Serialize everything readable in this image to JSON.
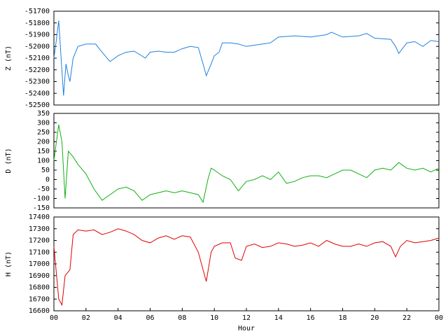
{
  "chart_data": [
    {
      "type": "line",
      "ylabel": "Z (nT)",
      "xlim": [
        0,
        24
      ],
      "ylim": [
        -52500,
        -51700
      ],
      "yticks": [
        -52500,
        -52400,
        -52300,
        -52200,
        -52100,
        -52000,
        -51900,
        -51800,
        -51700
      ],
      "series": [
        {
          "name": "Z",
          "color": "#2080e0",
          "x": [
            0,
            0.15,
            0.3,
            0.45,
            0.6,
            0.75,
            0.9,
            1.0,
            1.2,
            1.5,
            2,
            2.6,
            3,
            3.5,
            4,
            4.5,
            5,
            5.7,
            6,
            6.5,
            7,
            7.5,
            8,
            8.5,
            9,
            9.3,
            9.5,
            9.8,
            10,
            10.3,
            10.5,
            11,
            11.5,
            12,
            13,
            13.5,
            14,
            15,
            16,
            17,
            17.3,
            18,
            19,
            19.5,
            20,
            21,
            21.3,
            21.5,
            22,
            22.5,
            23,
            23.5,
            24
          ],
          "values": [
            -52100,
            -51950,
            -51780,
            -52100,
            -52420,
            -52150,
            -52250,
            -52300,
            -52100,
            -52000,
            -51980,
            -51980,
            -52050,
            -52130,
            -52080,
            -52050,
            -52040,
            -52100,
            -52050,
            -52040,
            -52050,
            -52050,
            -52020,
            -52000,
            -52010,
            -52150,
            -52250,
            -52150,
            -52080,
            -52050,
            -51970,
            -51970,
            -51980,
            -52000,
            -51980,
            -51970,
            -51920,
            -51910,
            -51920,
            -51900,
            -51880,
            -51920,
            -51910,
            -51890,
            -51930,
            -51940,
            -52000,
            -52060,
            -51970,
            -51960,
            -52000,
            -51950,
            -51960
          ]
        }
      ]
    },
    {
      "type": "line",
      "ylabel": "D (nT)",
      "xlim": [
        0,
        24
      ],
      "ylim": [
        -150,
        350
      ],
      "yticks": [
        -150,
        -100,
        -50,
        0,
        50,
        100,
        150,
        200,
        250,
        300,
        350
      ],
      "series": [
        {
          "name": "D",
          "color": "#10b010",
          "x": [
            0,
            0.3,
            0.5,
            0.7,
            0.9,
            1.2,
            1.5,
            2,
            2.5,
            3,
            3.5,
            4,
            4.5,
            5,
            5.5,
            6,
            6.5,
            7,
            7.5,
            8,
            8.5,
            9,
            9.3,
            9.6,
            9.8,
            10,
            10.5,
            11,
            11.5,
            12,
            12.5,
            13,
            13.5,
            14,
            14.5,
            15,
            15.5,
            16,
            16.5,
            17,
            17.5,
            18,
            18.5,
            19,
            19.5,
            20,
            20.5,
            21,
            21.5,
            22,
            22.5,
            23,
            23.5,
            24
          ],
          "values": [
            100,
            290,
            200,
            -100,
            150,
            120,
            80,
            30,
            -50,
            -110,
            -80,
            -50,
            -40,
            -60,
            -110,
            -80,
            -70,
            -60,
            -70,
            -60,
            -70,
            -80,
            -120,
            0,
            60,
            50,
            20,
            0,
            -60,
            -10,
            0,
            20,
            0,
            40,
            -20,
            -10,
            10,
            20,
            20,
            10,
            30,
            50,
            50,
            30,
            10,
            50,
            60,
            50,
            90,
            60,
            50,
            60,
            40,
            60
          ]
        }
      ]
    },
    {
      "type": "line",
      "xlabel": "Hour",
      "ylabel": "H (nT)",
      "xlim": [
        0,
        24
      ],
      "ylim": [
        16600,
        17400
      ],
      "xticks": [
        {
          "value": 0,
          "label": "00"
        },
        {
          "value": 2,
          "label": "02"
        },
        {
          "value": 4,
          "label": "04"
        },
        {
          "value": 6,
          "label": "06"
        },
        {
          "value": 8,
          "label": "08"
        },
        10,
        12,
        14,
        16,
        18,
        20,
        22,
        {
          "value": 24,
          "label": "00"
        }
      ],
      "yticks": [
        16600,
        16700,
        16800,
        16900,
        17000,
        17100,
        17200,
        17300,
        17400
      ],
      "series": [
        {
          "name": "H",
          "color": "#e00000",
          "x": [
            0,
            0.3,
            0.5,
            0.7,
            1.0,
            1.2,
            1.5,
            2,
            2.5,
            3,
            3.5,
            4,
            4.5,
            5,
            5.5,
            6,
            6.5,
            7,
            7.5,
            8,
            8.5,
            9,
            9.3,
            9.5,
            9.8,
            10,
            10.5,
            11,
            11.3,
            11.7,
            12,
            12.5,
            13,
            13.5,
            14,
            14.5,
            15,
            15.5,
            16,
            16.5,
            17,
            17.5,
            18,
            18.5,
            19,
            19.5,
            20,
            20.5,
            21,
            21.3,
            21.6,
            22,
            22.5,
            23,
            23.5,
            24
          ],
          "values": [
            17150,
            16700,
            16650,
            16900,
            16950,
            17250,
            17290,
            17280,
            17290,
            17250,
            17270,
            17300,
            17280,
            17250,
            17200,
            17180,
            17220,
            17240,
            17210,
            17240,
            17230,
            17100,
            16950,
            16850,
            17100,
            17150,
            17180,
            17180,
            17050,
            17030,
            17150,
            17170,
            17140,
            17150,
            17180,
            17170,
            17150,
            17160,
            17180,
            17150,
            17200,
            17170,
            17150,
            17150,
            17170,
            17150,
            17180,
            17190,
            17150,
            17060,
            17150,
            17200,
            17180,
            17190,
            17200,
            17220
          ]
        }
      ]
    }
  ]
}
